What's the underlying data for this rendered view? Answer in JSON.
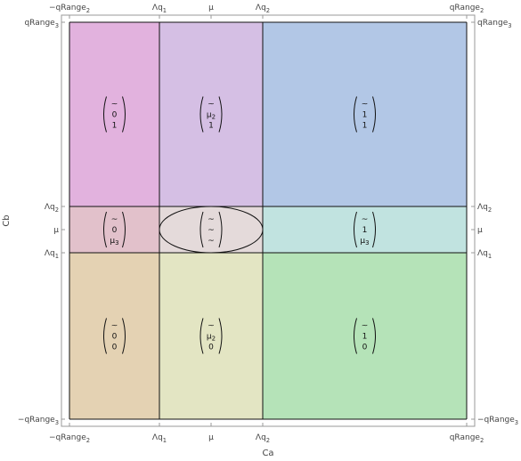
{
  "axes": {
    "xlabel": "Ca",
    "ylabel": "Cb",
    "x_ticks": [
      {
        "main": "−qRange",
        "sub": "2"
      },
      {
        "main": "Λq",
        "sub": "1"
      },
      {
        "main": "μ",
        "sub": ""
      },
      {
        "main": "Λq",
        "sub": "2"
      },
      {
        "main": "qRange",
        "sub": "2"
      }
    ],
    "y_ticks": [
      {
        "main": "qRange",
        "sub": "3"
      },
      {
        "main": "Λq",
        "sub": "2"
      },
      {
        "main": "μ",
        "sub": ""
      },
      {
        "main": "Λq",
        "sub": "1"
      },
      {
        "main": "−qRange",
        "sub": "3"
      }
    ]
  },
  "colors": {
    "r1c1": "#e2b2de",
    "r1c2": "#d5bfe4",
    "r1c3": "#b2c7e6",
    "r2c1": "#e2c1cb",
    "r2c2": "#e4dada",
    "r2c3": "#c1e3e0",
    "r3c1": "#e4d2b3",
    "r3c2": "#e3e5c3",
    "r3c3": "#b5e3b8"
  },
  "cells": [
    {
      "id": "r1c1",
      "vector": [
        {
          "m": "~",
          "s": ""
        },
        {
          "m": "0",
          "s": ""
        },
        {
          "m": "1",
          "s": ""
        }
      ]
    },
    {
      "id": "r1c2",
      "vector": [
        {
          "m": "~",
          "s": ""
        },
        {
          "m": "μ",
          "s": "2"
        },
        {
          "m": "1",
          "s": ""
        }
      ]
    },
    {
      "id": "r1c3",
      "vector": [
        {
          "m": "~",
          "s": ""
        },
        {
          "m": "1",
          "s": ""
        },
        {
          "m": "1",
          "s": ""
        }
      ]
    },
    {
      "id": "r2c1",
      "vector": [
        {
          "m": "~",
          "s": ""
        },
        {
          "m": "0",
          "s": ""
        },
        {
          "m": "μ",
          "s": "3"
        }
      ]
    },
    {
      "id": "r2c2",
      "vector": [
        {
          "m": "~",
          "s": ""
        },
        {
          "m": "~",
          "s": ""
        },
        {
          "m": "~",
          "s": ""
        }
      ]
    },
    {
      "id": "r2c3",
      "vector": [
        {
          "m": "~",
          "s": ""
        },
        {
          "m": "1",
          "s": ""
        },
        {
          "m": "μ",
          "s": "3"
        }
      ]
    },
    {
      "id": "r3c1",
      "vector": [
        {
          "m": "~",
          "s": ""
        },
        {
          "m": "0",
          "s": ""
        },
        {
          "m": "0",
          "s": ""
        }
      ]
    },
    {
      "id": "r3c2",
      "vector": [
        {
          "m": "~",
          "s": ""
        },
        {
          "m": "μ",
          "s": "2"
        },
        {
          "m": "0",
          "s": ""
        }
      ]
    },
    {
      "id": "r3c3",
      "vector": [
        {
          "m": "~",
          "s": ""
        },
        {
          "m": "1",
          "s": ""
        },
        {
          "m": "0",
          "s": ""
        }
      ]
    }
  ]
}
